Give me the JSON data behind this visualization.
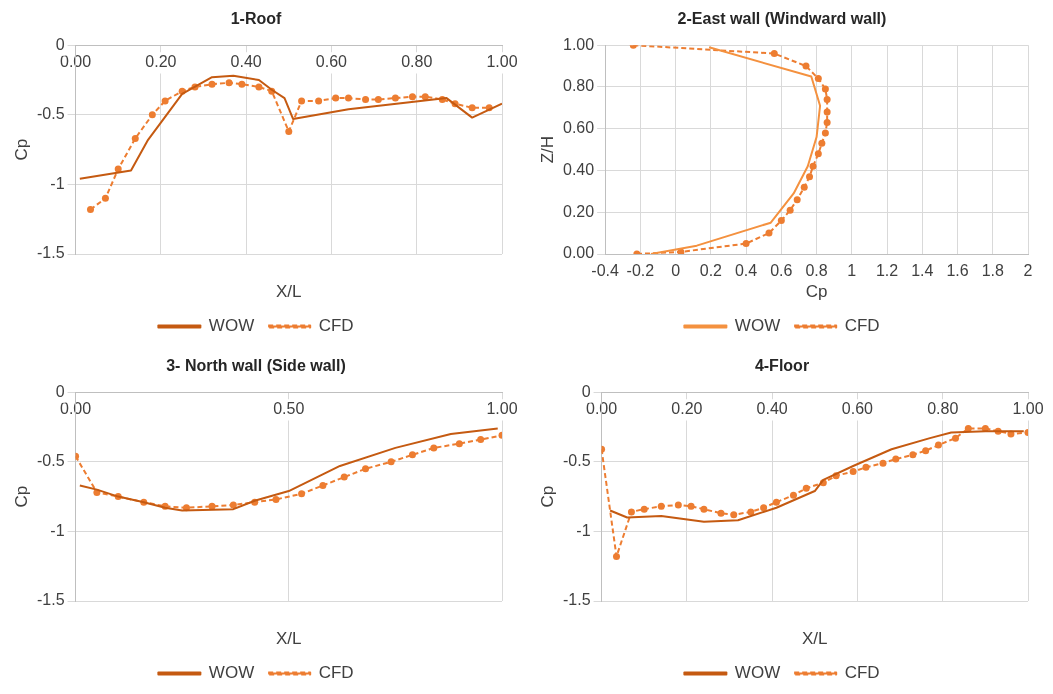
{
  "chart_data": [
    {
      "type": "line",
      "title": "1-Roof",
      "xlabel": "X/L",
      "ylabel": "Cp",
      "xlim": [
        0,
        1
      ],
      "ylim": [
        -1.5,
        0
      ],
      "xticks": [
        {
          "value": 0,
          "label": "0.00"
        },
        {
          "value": 0.2,
          "label": "0.20"
        },
        {
          "value": 0.4,
          "label": "0.40"
        },
        {
          "value": 0.6,
          "label": "0.60"
        },
        {
          "value": 0.8,
          "label": "0.80"
        },
        {
          "value": 1,
          "label": "1.00"
        }
      ],
      "yticks": [
        -1.5,
        -1,
        -0.5,
        0
      ],
      "grid": true,
      "legend": "bottom",
      "series": [
        {
          "name": "WOW",
          "color": "#c55a11",
          "marker": "none",
          "line_style": "solid",
          "x": [
            0.01,
            0.13,
            0.17,
            0.25,
            0.32,
            0.37,
            0.43,
            0.46,
            0.49,
            0.51,
            0.64,
            0.87,
            0.93,
            1.0
          ],
          "values": [
            -0.96,
            -0.9,
            -0.68,
            -0.35,
            -0.23,
            -0.22,
            -0.25,
            -0.32,
            -0.38,
            -0.53,
            -0.46,
            -0.38,
            -0.52,
            -0.42
          ]
        },
        {
          "name": "CFD",
          "color": "#ed7d31",
          "marker": "circle",
          "line_style": "dashed",
          "x": [
            0.035,
            0.07,
            0.1,
            0.14,
            0.18,
            0.21,
            0.25,
            0.28,
            0.32,
            0.36,
            0.39,
            0.43,
            0.46,
            0.5,
            0.53,
            0.57,
            0.61,
            0.64,
            0.68,
            0.71,
            0.75,
            0.79,
            0.82,
            0.86,
            0.89,
            0.93,
            0.97
          ],
          "values": [
            -1.18,
            -1.1,
            -0.89,
            -0.67,
            -0.5,
            -0.4,
            -0.33,
            -0.3,
            -0.28,
            -0.27,
            -0.28,
            -0.3,
            -0.33,
            -0.62,
            -0.4,
            -0.4,
            -0.38,
            -0.38,
            -0.39,
            -0.39,
            -0.38,
            -0.37,
            -0.37,
            -0.39,
            -0.42,
            -0.45,
            -0.45
          ]
        }
      ]
    },
    {
      "type": "line",
      "title": "2-East wall (Windward wall)",
      "xlabel": "Cp",
      "ylabel": "Z/H",
      "xlim": [
        -0.4,
        2
      ],
      "ylim": [
        0,
        1
      ],
      "xticks": [
        -0.4,
        -0.2,
        0,
        0.2,
        0.4,
        0.6,
        0.8,
        1,
        1.2,
        1.4,
        1.6,
        1.8,
        2
      ],
      "yticks": [
        {
          "value": 0,
          "label": "0.00"
        },
        {
          "value": 0.2,
          "label": "0.20"
        },
        {
          "value": 0.4,
          "label": "0.40"
        },
        {
          "value": 0.6,
          "label": "0.60"
        },
        {
          "value": 0.8,
          "label": "0.80"
        },
        {
          "value": 1,
          "label": "1.00"
        }
      ],
      "grid": true,
      "legend": "bottom",
      "series": [
        {
          "name": "WOW",
          "color": "#f4913f",
          "marker": "none",
          "line_style": "solid",
          "x": [
            0.19,
            0.77,
            0.82,
            0.8,
            0.75,
            0.67,
            0.54,
            0.12,
            -0.14
          ],
          "values": [
            0.99,
            0.85,
            0.71,
            0.56,
            0.42,
            0.29,
            0.15,
            0.04,
            0.0
          ]
        },
        {
          "name": "CFD",
          "color": "#ed7d31",
          "marker": "circle",
          "line_style": "dashed",
          "x": [
            -0.24,
            0.56,
            0.74,
            0.81,
            0.85,
            0.86,
            0.86,
            0.86,
            0.85,
            0.83,
            0.81,
            0.78,
            0.76,
            0.73,
            0.69,
            0.65,
            0.6,
            0.53,
            0.4,
            0.03,
            -0.22
          ],
          "values": [
            1.0,
            0.96,
            0.9,
            0.84,
            0.79,
            0.74,
            0.68,
            0.63,
            0.58,
            0.53,
            0.48,
            0.42,
            0.37,
            0.32,
            0.26,
            0.21,
            0.16,
            0.1,
            0.05,
            0.01,
            0.0
          ]
        }
      ]
    },
    {
      "type": "line",
      "title": "3- North wall (Side wall)",
      "xlabel": "X/L",
      "ylabel": "Cp",
      "xlim": [
        0,
        1
      ],
      "ylim": [
        -1.5,
        0
      ],
      "xticks": [
        {
          "value": 0,
          "label": "0.00"
        },
        {
          "value": 0.5,
          "label": "0.50"
        },
        {
          "value": 1,
          "label": "1.00"
        }
      ],
      "yticks": [
        -1.5,
        -1,
        -0.5,
        0
      ],
      "grid": true,
      "legend": "bottom",
      "series": [
        {
          "name": "WOW",
          "color": "#c55a11",
          "marker": "none",
          "line_style": "solid",
          "x": [
            0.01,
            0.05,
            0.1,
            0.16,
            0.21,
            0.25,
            0.37,
            0.42,
            0.5,
            0.62,
            0.75,
            0.88,
            0.99
          ],
          "values": [
            -0.67,
            -0.7,
            -0.75,
            -0.79,
            -0.83,
            -0.85,
            -0.84,
            -0.78,
            -0.71,
            -0.53,
            -0.4,
            -0.3,
            -0.26
          ]
        },
        {
          "name": "CFD",
          "color": "#ed7d31",
          "marker": "circle",
          "line_style": "dashed",
          "x": [
            0,
            0.05,
            0.1,
            0.16,
            0.21,
            0.26,
            0.32,
            0.37,
            0.42,
            0.47,
            0.53,
            0.58,
            0.63,
            0.68,
            0.74,
            0.79,
            0.84,
            0.9,
            0.95,
            1.0
          ],
          "values": [
            -0.46,
            -0.72,
            -0.75,
            -0.79,
            -0.82,
            -0.83,
            -0.82,
            -0.81,
            -0.79,
            -0.77,
            -0.73,
            -0.67,
            -0.61,
            -0.55,
            -0.5,
            -0.45,
            -0.4,
            -0.37,
            -0.34,
            -0.31
          ]
        }
      ]
    },
    {
      "type": "line",
      "title": "4-Floor",
      "xlabel": "X/L",
      "ylabel": "Cp",
      "xlim": [
        0,
        1
      ],
      "ylim": [
        -1.5,
        0
      ],
      "xticks": [
        {
          "value": 0,
          "label": "0.00"
        },
        {
          "value": 0.2,
          "label": "0.20"
        },
        {
          "value": 0.4,
          "label": "0.40"
        },
        {
          "value": 0.6,
          "label": "0.60"
        },
        {
          "value": 0.8,
          "label": "0.80"
        },
        {
          "value": 1,
          "label": "1.00"
        }
      ],
      "yticks": [
        -1.5,
        -1,
        -0.5,
        0
      ],
      "grid": true,
      "legend": "bottom",
      "series": [
        {
          "name": "WOW",
          "color": "#c55a11",
          "marker": "none",
          "line_style": "solid",
          "x": [
            0.02,
            0.06,
            0.14,
            0.24,
            0.32,
            0.41,
            0.5,
            0.52,
            0.59,
            0.68,
            0.77,
            0.82,
            0.9,
            0.99
          ],
          "values": [
            -0.85,
            -0.9,
            -0.89,
            -0.93,
            -0.92,
            -0.83,
            -0.71,
            -0.63,
            -0.53,
            -0.41,
            -0.33,
            -0.29,
            -0.28,
            -0.28
          ]
        },
        {
          "name": "CFD",
          "color": "#ed7d31",
          "marker": "circle",
          "line_style": "dashed",
          "x": [
            0,
            0.035,
            0.07,
            0.1,
            0.14,
            0.18,
            0.21,
            0.24,
            0.28,
            0.31,
            0.35,
            0.38,
            0.41,
            0.45,
            0.48,
            0.52,
            0.55,
            0.59,
            0.62,
            0.66,
            0.69,
            0.73,
            0.76,
            0.79,
            0.83,
            0.86,
            0.9,
            0.93,
            0.96,
            1.0
          ],
          "values": [
            -0.41,
            -1.18,
            -0.86,
            -0.84,
            -0.82,
            -0.81,
            -0.82,
            -0.84,
            -0.87,
            -0.88,
            -0.86,
            -0.83,
            -0.79,
            -0.74,
            -0.69,
            -0.65,
            -0.6,
            -0.57,
            -0.54,
            -0.51,
            -0.48,
            -0.45,
            -0.42,
            -0.38,
            -0.33,
            -0.26,
            -0.26,
            -0.28,
            -0.3,
            -0.29
          ]
        }
      ]
    }
  ]
}
